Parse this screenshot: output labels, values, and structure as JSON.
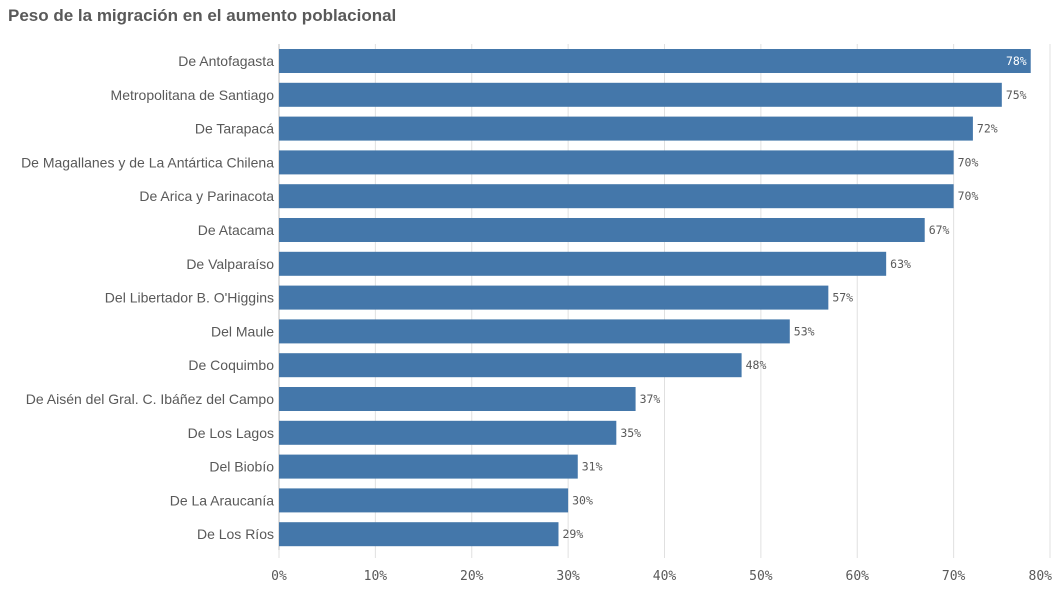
{
  "chart_data": {
    "type": "bar",
    "orientation": "horizontal",
    "title": "Peso de la migración en el aumento poblacional",
    "categories": [
      "De Antofagasta",
      "Metropolitana de Santiago",
      "De Tarapacá",
      "De Magallanes y de La Antártica Chilena",
      "De Arica y Parinacota",
      "De Atacama",
      "De Valparaíso",
      "Del Libertador B. O'Higgins",
      "Del Maule",
      "De Coquimbo",
      "De Aisén del Gral. C. Ibáñez del Campo",
      "De Los Lagos",
      "Del Biobío",
      "De La Araucanía",
      "De Los Ríos"
    ],
    "values": [
      78,
      75,
      72,
      70,
      70,
      67,
      63,
      57,
      53,
      48,
      37,
      35,
      31,
      30,
      29
    ],
    "data_labels": [
      "78%",
      "75%",
      "72%",
      "70%",
      "70%",
      "67%",
      "63%",
      "57%",
      "53%",
      "48%",
      "37%",
      "35%",
      "31%",
      "30%",
      "29%"
    ],
    "xlim": [
      0,
      80
    ],
    "x_ticks": [
      "0%",
      "10%",
      "20%",
      "30%",
      "40%",
      "50%",
      "60%",
      "70%",
      "80%"
    ],
    "grid": true,
    "bar_color": "#4477aa",
    "grid_color": "#e0e0e0",
    "label_color": "#595959"
  }
}
